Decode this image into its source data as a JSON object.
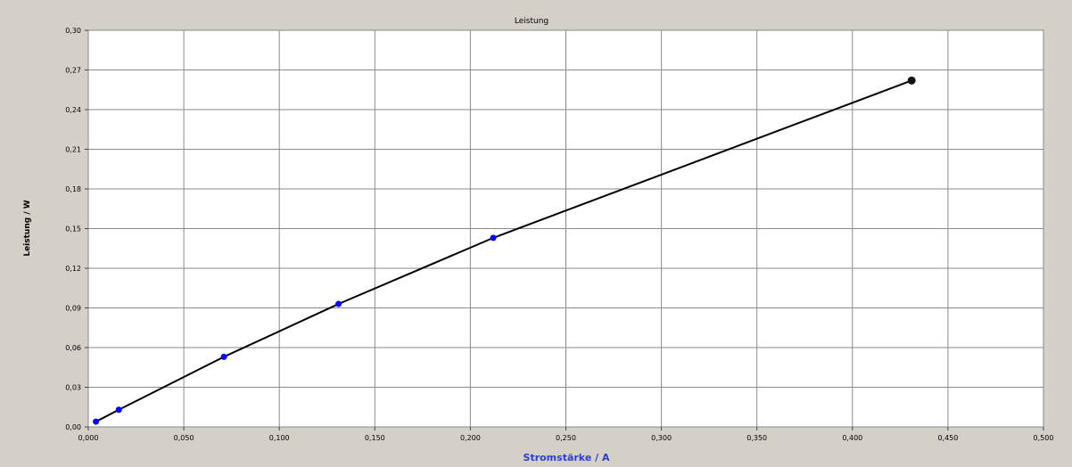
{
  "chart_data": {
    "type": "line",
    "title": "Leistung",
    "xlabel": "Stromstärke / A",
    "ylabel": "Leistung / W",
    "xlim": [
      0,
      0.5
    ],
    "ylim": [
      0,
      0.3
    ],
    "grid": true,
    "x_ticks": [
      "0,000",
      "0,050",
      "0,100",
      "0,150",
      "0,200",
      "0,250",
      "0,300",
      "0,350",
      "0,400",
      "0,450",
      "0,500"
    ],
    "y_ticks": [
      "0,00",
      "0,03",
      "0,06",
      "0,09",
      "0,12",
      "0,15",
      "0,18",
      "0,21",
      "0,24",
      "0,27",
      "0,30"
    ],
    "series": [
      {
        "color": "#0000ff",
        "points": [
          {
            "x": 0.004,
            "y": 0.004
          },
          {
            "x": 0.016,
            "y": 0.013
          },
          {
            "x": 0.071,
            "y": 0.053
          },
          {
            "x": 0.131,
            "y": 0.093
          },
          {
            "x": 0.212,
            "y": 0.143
          },
          {
            "x": 0.431,
            "y": 0.262
          }
        ],
        "highlight_last_color": "#111111"
      }
    ]
  }
}
